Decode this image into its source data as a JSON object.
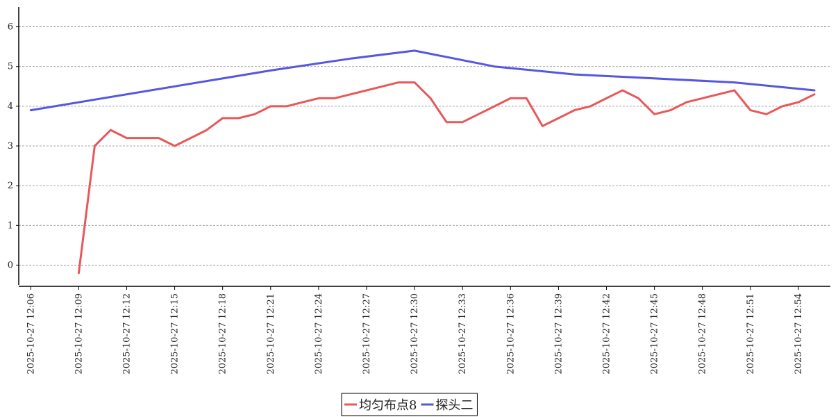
{
  "chart_data": {
    "type": "line",
    "title": "",
    "xlabel": "",
    "ylabel": "",
    "x_tick_labels": [
      "2025-10-27 12:06",
      "2025-10-27 12:09",
      "2025-10-27 12:12",
      "2025-10-27 12:15",
      "2025-10-27 12:18",
      "2025-10-27 12:21",
      "2025-10-27 12:24",
      "2025-10-27 12:27",
      "2025-10-27 12:30",
      "2025-10-27 12:33",
      "2025-10-27 12:36",
      "2025-10-27 12:39",
      "2025-10-27 12:42",
      "2025-10-27 12:45",
      "2025-10-27 12:48",
      "2025-10-27 12:51",
      "2025-10-27 12:54"
    ],
    "y_ticks": [
      0,
      1,
      2,
      3,
      4,
      5,
      6
    ],
    "ylim": [
      -0.5,
      6.5
    ],
    "xlim": [
      "2025-10-27 12:05:15",
      "2025-10-27 12:56:00"
    ],
    "grid": "horizontal-dashed",
    "legend_position": "bottom-center",
    "series": [
      {
        "name": "均匀布点8",
        "color": "#e8585a",
        "points": [
          [
            "2025-10-27 12:09",
            -0.2
          ],
          [
            "2025-10-27 12:10",
            3.0
          ],
          [
            "2025-10-27 12:11",
            3.4
          ],
          [
            "2025-10-27 12:12",
            3.2
          ],
          [
            "2025-10-27 12:13",
            3.2
          ],
          [
            "2025-10-27 12:14",
            3.2
          ],
          [
            "2025-10-27 12:15",
            3.0
          ],
          [
            "2025-10-27 12:16",
            3.2
          ],
          [
            "2025-10-27 12:17",
            3.4
          ],
          [
            "2025-10-27 12:18",
            3.7
          ],
          [
            "2025-10-27 12:19",
            3.7
          ],
          [
            "2025-10-27 12:20",
            3.8
          ],
          [
            "2025-10-27 12:21",
            4.0
          ],
          [
            "2025-10-27 12:22",
            4.0
          ],
          [
            "2025-10-27 12:23",
            4.1
          ],
          [
            "2025-10-27 12:24",
            4.2
          ],
          [
            "2025-10-27 12:25",
            4.2
          ],
          [
            "2025-10-27 12:26",
            4.3
          ],
          [
            "2025-10-27 12:27",
            4.4
          ],
          [
            "2025-10-27 12:28",
            4.5
          ],
          [
            "2025-10-27 12:29",
            4.6
          ],
          [
            "2025-10-27 12:30",
            4.6
          ],
          [
            "2025-10-27 12:31",
            4.2
          ],
          [
            "2025-10-27 12:32",
            3.6
          ],
          [
            "2025-10-27 12:33",
            3.6
          ],
          [
            "2025-10-27 12:34",
            3.8
          ],
          [
            "2025-10-27 12:35",
            4.0
          ],
          [
            "2025-10-27 12:36",
            4.2
          ],
          [
            "2025-10-27 12:37",
            4.2
          ],
          [
            "2025-10-27 12:38",
            3.5
          ],
          [
            "2025-10-27 12:39",
            3.7
          ],
          [
            "2025-10-27 12:40",
            3.9
          ],
          [
            "2025-10-27 12:41",
            4.0
          ],
          [
            "2025-10-27 12:42",
            4.2
          ],
          [
            "2025-10-27 12:43",
            4.4
          ],
          [
            "2025-10-27 12:44",
            4.2
          ],
          [
            "2025-10-27 12:45",
            3.8
          ],
          [
            "2025-10-27 12:46",
            3.9
          ],
          [
            "2025-10-27 12:47",
            4.1
          ],
          [
            "2025-10-27 12:48",
            4.2
          ],
          [
            "2025-10-27 12:49",
            4.3
          ],
          [
            "2025-10-27 12:50",
            4.4
          ],
          [
            "2025-10-27 12:51",
            3.9
          ],
          [
            "2025-10-27 12:52",
            3.8
          ],
          [
            "2025-10-27 12:53",
            4.0
          ],
          [
            "2025-10-27 12:54",
            4.1
          ],
          [
            "2025-10-27 12:55",
            4.3
          ]
        ]
      },
      {
        "name": "探头二",
        "color": "#5656e0",
        "points": [
          [
            "2025-10-27 12:06",
            3.9
          ],
          [
            "2025-10-27 12:15",
            4.5
          ],
          [
            "2025-10-27 12:21",
            4.9
          ],
          [
            "2025-10-27 12:26",
            5.2
          ],
          [
            "2025-10-27 12:30",
            5.4
          ],
          [
            "2025-10-27 12:35",
            5.0
          ],
          [
            "2025-10-27 12:40",
            4.8
          ],
          [
            "2025-10-27 12:50",
            4.6
          ],
          [
            "2025-10-27 12:55",
            4.4
          ]
        ]
      }
    ]
  }
}
